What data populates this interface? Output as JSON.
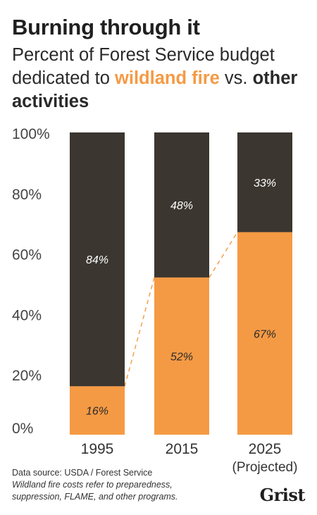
{
  "header": {
    "title": "Burning through it",
    "subtitle_pre": "Percent of Forest Service budget dedicated to ",
    "subtitle_fire": "wildland fire",
    "subtitle_mid": " vs. ",
    "subtitle_other": "other activities"
  },
  "colors": {
    "wildland_fire": "#f59a44",
    "other_activities": "#3b3630",
    "text": "#333333"
  },
  "chart_data": {
    "type": "bar",
    "stacked": true,
    "categories": [
      "1995",
      "2015",
      "2025"
    ],
    "category_sublabels": [
      "",
      "",
      "(Projected)"
    ],
    "series": [
      {
        "name": "wildland fire",
        "values": [
          16,
          52,
          67
        ],
        "labels": [
          "16%",
          "52%",
          "67%"
        ]
      },
      {
        "name": "other activities",
        "values": [
          84,
          48,
          33
        ],
        "labels": [
          "84%",
          "48%",
          "33%"
        ]
      }
    ],
    "yticks": [
      "0%",
      "20%",
      "40%",
      "60%",
      "80%",
      "100%"
    ],
    "ylim": [
      0,
      100
    ],
    "connector_lines": "dashed"
  },
  "footer": {
    "source": "Data source: USDA / Forest Service",
    "note_line1": "Wildland fire costs refer to preparedness,",
    "note_line2": "suppression, FLAME, and other programs."
  },
  "logo": "Grist"
}
